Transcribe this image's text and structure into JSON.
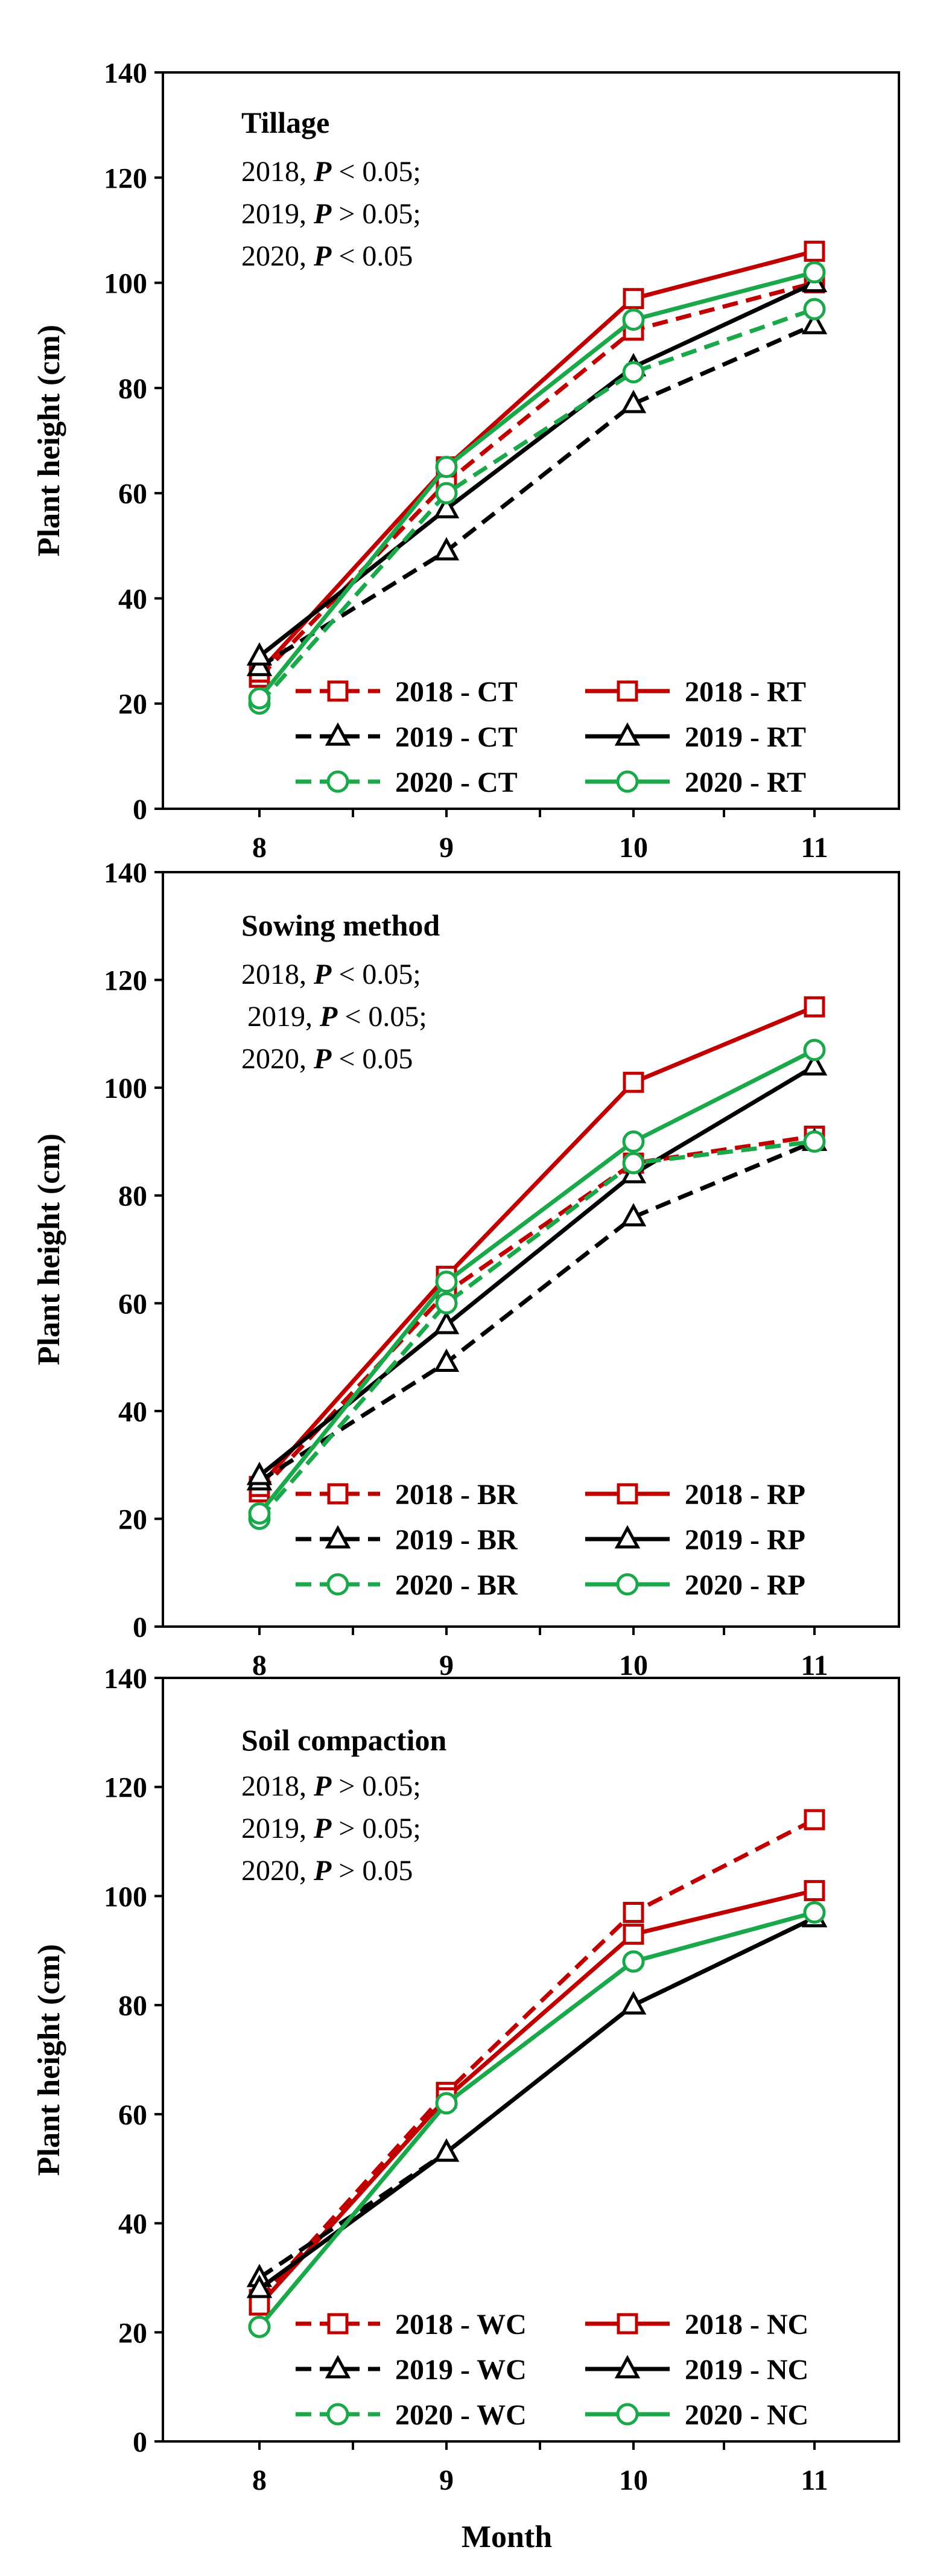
{
  "figure": {
    "xlabel": "Month",
    "ylabel": "Plant height (cm)"
  },
  "chart_data": [
    {
      "type": "line",
      "title": "Tillage",
      "stats": [
        {
          "year": "2018,",
          "p": "P",
          "rel": "< 0.05;"
        },
        {
          "year": "2019,",
          "p": "P",
          "rel": "> 0.05;"
        },
        {
          "year": "2020,",
          "p": "P",
          "rel": "< 0.05"
        }
      ],
      "xlabel": "",
      "ylabel": "Plant height (cm)",
      "x": [
        8,
        9,
        10,
        11
      ],
      "x_tick_labels": [
        "8",
        "9",
        "10",
        "11"
      ],
      "ylim": [
        0,
        140
      ],
      "y_ticks": [
        0,
        20,
        40,
        60,
        80,
        100,
        120,
        140
      ],
      "y_tick_labels": [
        "0",
        "20",
        "40",
        "60",
        "80",
        "100",
        "120",
        "140"
      ],
      "series": [
        {
          "name": "2018 - CT",
          "values": [
            25,
            62,
            91,
            100
          ],
          "color": "#c00000",
          "dash": true,
          "marker": "square"
        },
        {
          "name": "2018 - RT",
          "values": [
            26,
            65,
            97,
            106
          ],
          "color": "#c00000",
          "dash": false,
          "marker": "square"
        },
        {
          "name": "2019 - CT",
          "values": [
            27,
            49,
            77,
            92
          ],
          "color": "#000000",
          "dash": true,
          "marker": "triangle"
        },
        {
          "name": "2019 - RT",
          "values": [
            29,
            57,
            84,
            100
          ],
          "color": "#000000",
          "dash": false,
          "marker": "triangle"
        },
        {
          "name": "2020 - CT",
          "values": [
            20,
            60,
            83,
            95
          ],
          "color": "#1aa84b",
          "dash": true,
          "marker": "circle"
        },
        {
          "name": "2020 - RT",
          "values": [
            21,
            65,
            93,
            102
          ],
          "color": "#1aa84b",
          "dash": false,
          "marker": "circle"
        }
      ]
    },
    {
      "type": "line",
      "title": "Sowing method",
      "stats": [
        {
          "year": "2018,",
          "p": "P",
          "rel": "< 0.05;"
        },
        {
          "year": "2019,",
          "p": "P",
          "rel": "< 0.05;"
        },
        {
          "year": "2020,",
          "p": "P",
          "rel": "< 0.05"
        }
      ],
      "xlabel": "",
      "ylabel": "Plant height (cm)",
      "x": [
        8,
        9,
        10,
        11
      ],
      "x_tick_labels": [
        "8",
        "9",
        "10",
        "11"
      ],
      "ylim": [
        0,
        140
      ],
      "y_ticks": [
        0,
        20,
        40,
        60,
        80,
        100,
        120,
        140
      ],
      "y_tick_labels": [
        "0",
        "20",
        "40",
        "60",
        "80",
        "100",
        "120",
        "140"
      ],
      "series": [
        {
          "name": "2018 - BR",
          "values": [
            25,
            62,
            86,
            91
          ],
          "color": "#c00000",
          "dash": true,
          "marker": "square"
        },
        {
          "name": "2018 - RP",
          "values": [
            26,
            65,
            101,
            115
          ],
          "color": "#c00000",
          "dash": false,
          "marker": "square"
        },
        {
          "name": "2019 - BR",
          "values": [
            27,
            49,
            76,
            90
          ],
          "color": "#000000",
          "dash": true,
          "marker": "triangle"
        },
        {
          "name": "2019 - RP",
          "values": [
            28,
            56,
            84,
            104
          ],
          "color": "#000000",
          "dash": false,
          "marker": "triangle"
        },
        {
          "name": "2020 - BR",
          "values": [
            20,
            60,
            86,
            90
          ],
          "color": "#1aa84b",
          "dash": true,
          "marker": "circle"
        },
        {
          "name": "2020 - RP",
          "values": [
            21,
            64,
            90,
            107
          ],
          "color": "#1aa84b",
          "dash": false,
          "marker": "circle"
        }
      ]
    },
    {
      "type": "line",
      "title": "Soil compaction",
      "stats": [
        {
          "year": "2018,",
          "p": "P",
          "rel": "> 0.05;"
        },
        {
          "year": "2019,",
          "p": "P",
          "rel": "> 0.05;"
        },
        {
          "year": "2020,",
          "p": "P",
          "rel": "> 0.05"
        }
      ],
      "xlabel": "Month",
      "ylabel": "Plant height (cm)",
      "x": [
        8,
        9,
        10,
        11
      ],
      "x_tick_labels": [
        "8",
        "9",
        "10",
        "11"
      ],
      "ylim": [
        0,
        140
      ],
      "y_ticks": [
        0,
        20,
        40,
        60,
        80,
        100,
        120,
        140
      ],
      "y_tick_labels": [
        "0",
        "20",
        "40",
        "60",
        "80",
        "100",
        "120",
        "140"
      ],
      "series": [
        {
          "name": "2018 - WC",
          "values": [
            26,
            64,
            97,
            114
          ],
          "color": "#c00000",
          "dash": true,
          "marker": "square"
        },
        {
          "name": "2018 - NC",
          "values": [
            25,
            63,
            93,
            101
          ],
          "color": "#c00000",
          "dash": false,
          "marker": "square"
        },
        {
          "name": "2019 - WC",
          "values": [
            30,
            53,
            80,
            96
          ],
          "color": "#000000",
          "dash": true,
          "marker": "triangle"
        },
        {
          "name": "2019 - NC",
          "values": [
            28,
            53,
            80,
            96
          ],
          "color": "#000000",
          "dash": false,
          "marker": "triangle"
        },
        {
          "name": "2020 - WC",
          "values": [
            21,
            62,
            88,
            97
          ],
          "color": "#1aa84b",
          "dash": true,
          "marker": "circle"
        },
        {
          "name": "2020 - NC",
          "values": [
            21,
            62,
            88,
            97
          ],
          "color": "#1aa84b",
          "dash": false,
          "marker": "circle"
        }
      ]
    }
  ]
}
